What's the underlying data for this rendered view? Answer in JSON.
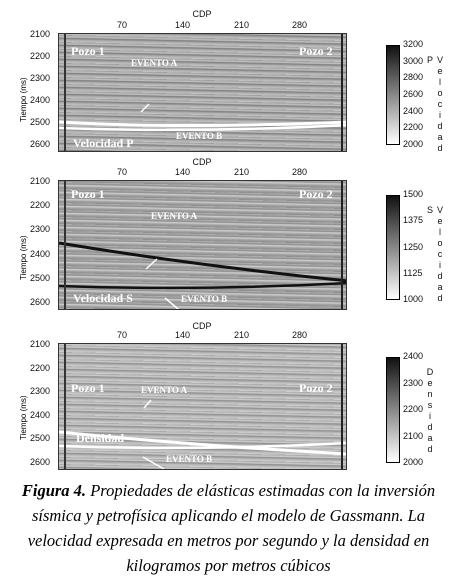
{
  "figure": {
    "panels": [
      {
        "x_axis_label": "CDP",
        "x_ticks": [
          70,
          140,
          210,
          280
        ],
        "y_axis_label": "Tiempo (ms)",
        "y_ticks": [
          2100,
          2200,
          2300,
          2400,
          2500,
          2600
        ],
        "well_left": "Pozo 1",
        "well_right": "Pozo 2",
        "event_a": "EVENTO  A",
        "event_b": "EVENTO B",
        "property": "Velocidad  P",
        "colorbar_ticks": [
          3200,
          3000,
          2800,
          2600,
          2400,
          2200,
          2000
        ],
        "colorbar_label": "Velocidad P"
      },
      {
        "x_axis_label": "CDP",
        "x_ticks": [
          70,
          140,
          210,
          280
        ],
        "y_axis_label": "Tiempo (ms)",
        "y_ticks": [
          2100,
          2200,
          2300,
          2400,
          2500,
          2600
        ],
        "well_left": "Pozo 1",
        "well_right": "Pozo 2",
        "event_a": "EVENTO  A",
        "event_b": "EVENTO B",
        "property": "Velocidad S",
        "colorbar_ticks": [
          1500,
          1375,
          1250,
          1125,
          1000
        ],
        "colorbar_label": "Velocidad S"
      },
      {
        "x_axis_label": "CDP",
        "x_ticks": [
          70,
          140,
          210,
          280
        ],
        "y_axis_label": "Tiempo (ms)",
        "y_ticks": [
          2100,
          2200,
          2300,
          2400,
          2500,
          2600
        ],
        "well_left": "Pozo 1",
        "well_right": "Pozo 2",
        "event_a": "EVENTO A",
        "event_b": "EVENTO B",
        "property": "Densidad",
        "colorbar_ticks": [
          2400,
          2300,
          2200,
          2100,
          2000
        ],
        "colorbar_label": "Densidad"
      }
    ],
    "caption": {
      "label": "Figura 4.",
      "text": "Propiedades de elásticas estimadas con la inversión sísmica y petrofísica aplicando el modelo de Gassmann. La velocidad expresada en metros por segundo y la densidad en kilogramos por metros cúbicos"
    }
  }
}
